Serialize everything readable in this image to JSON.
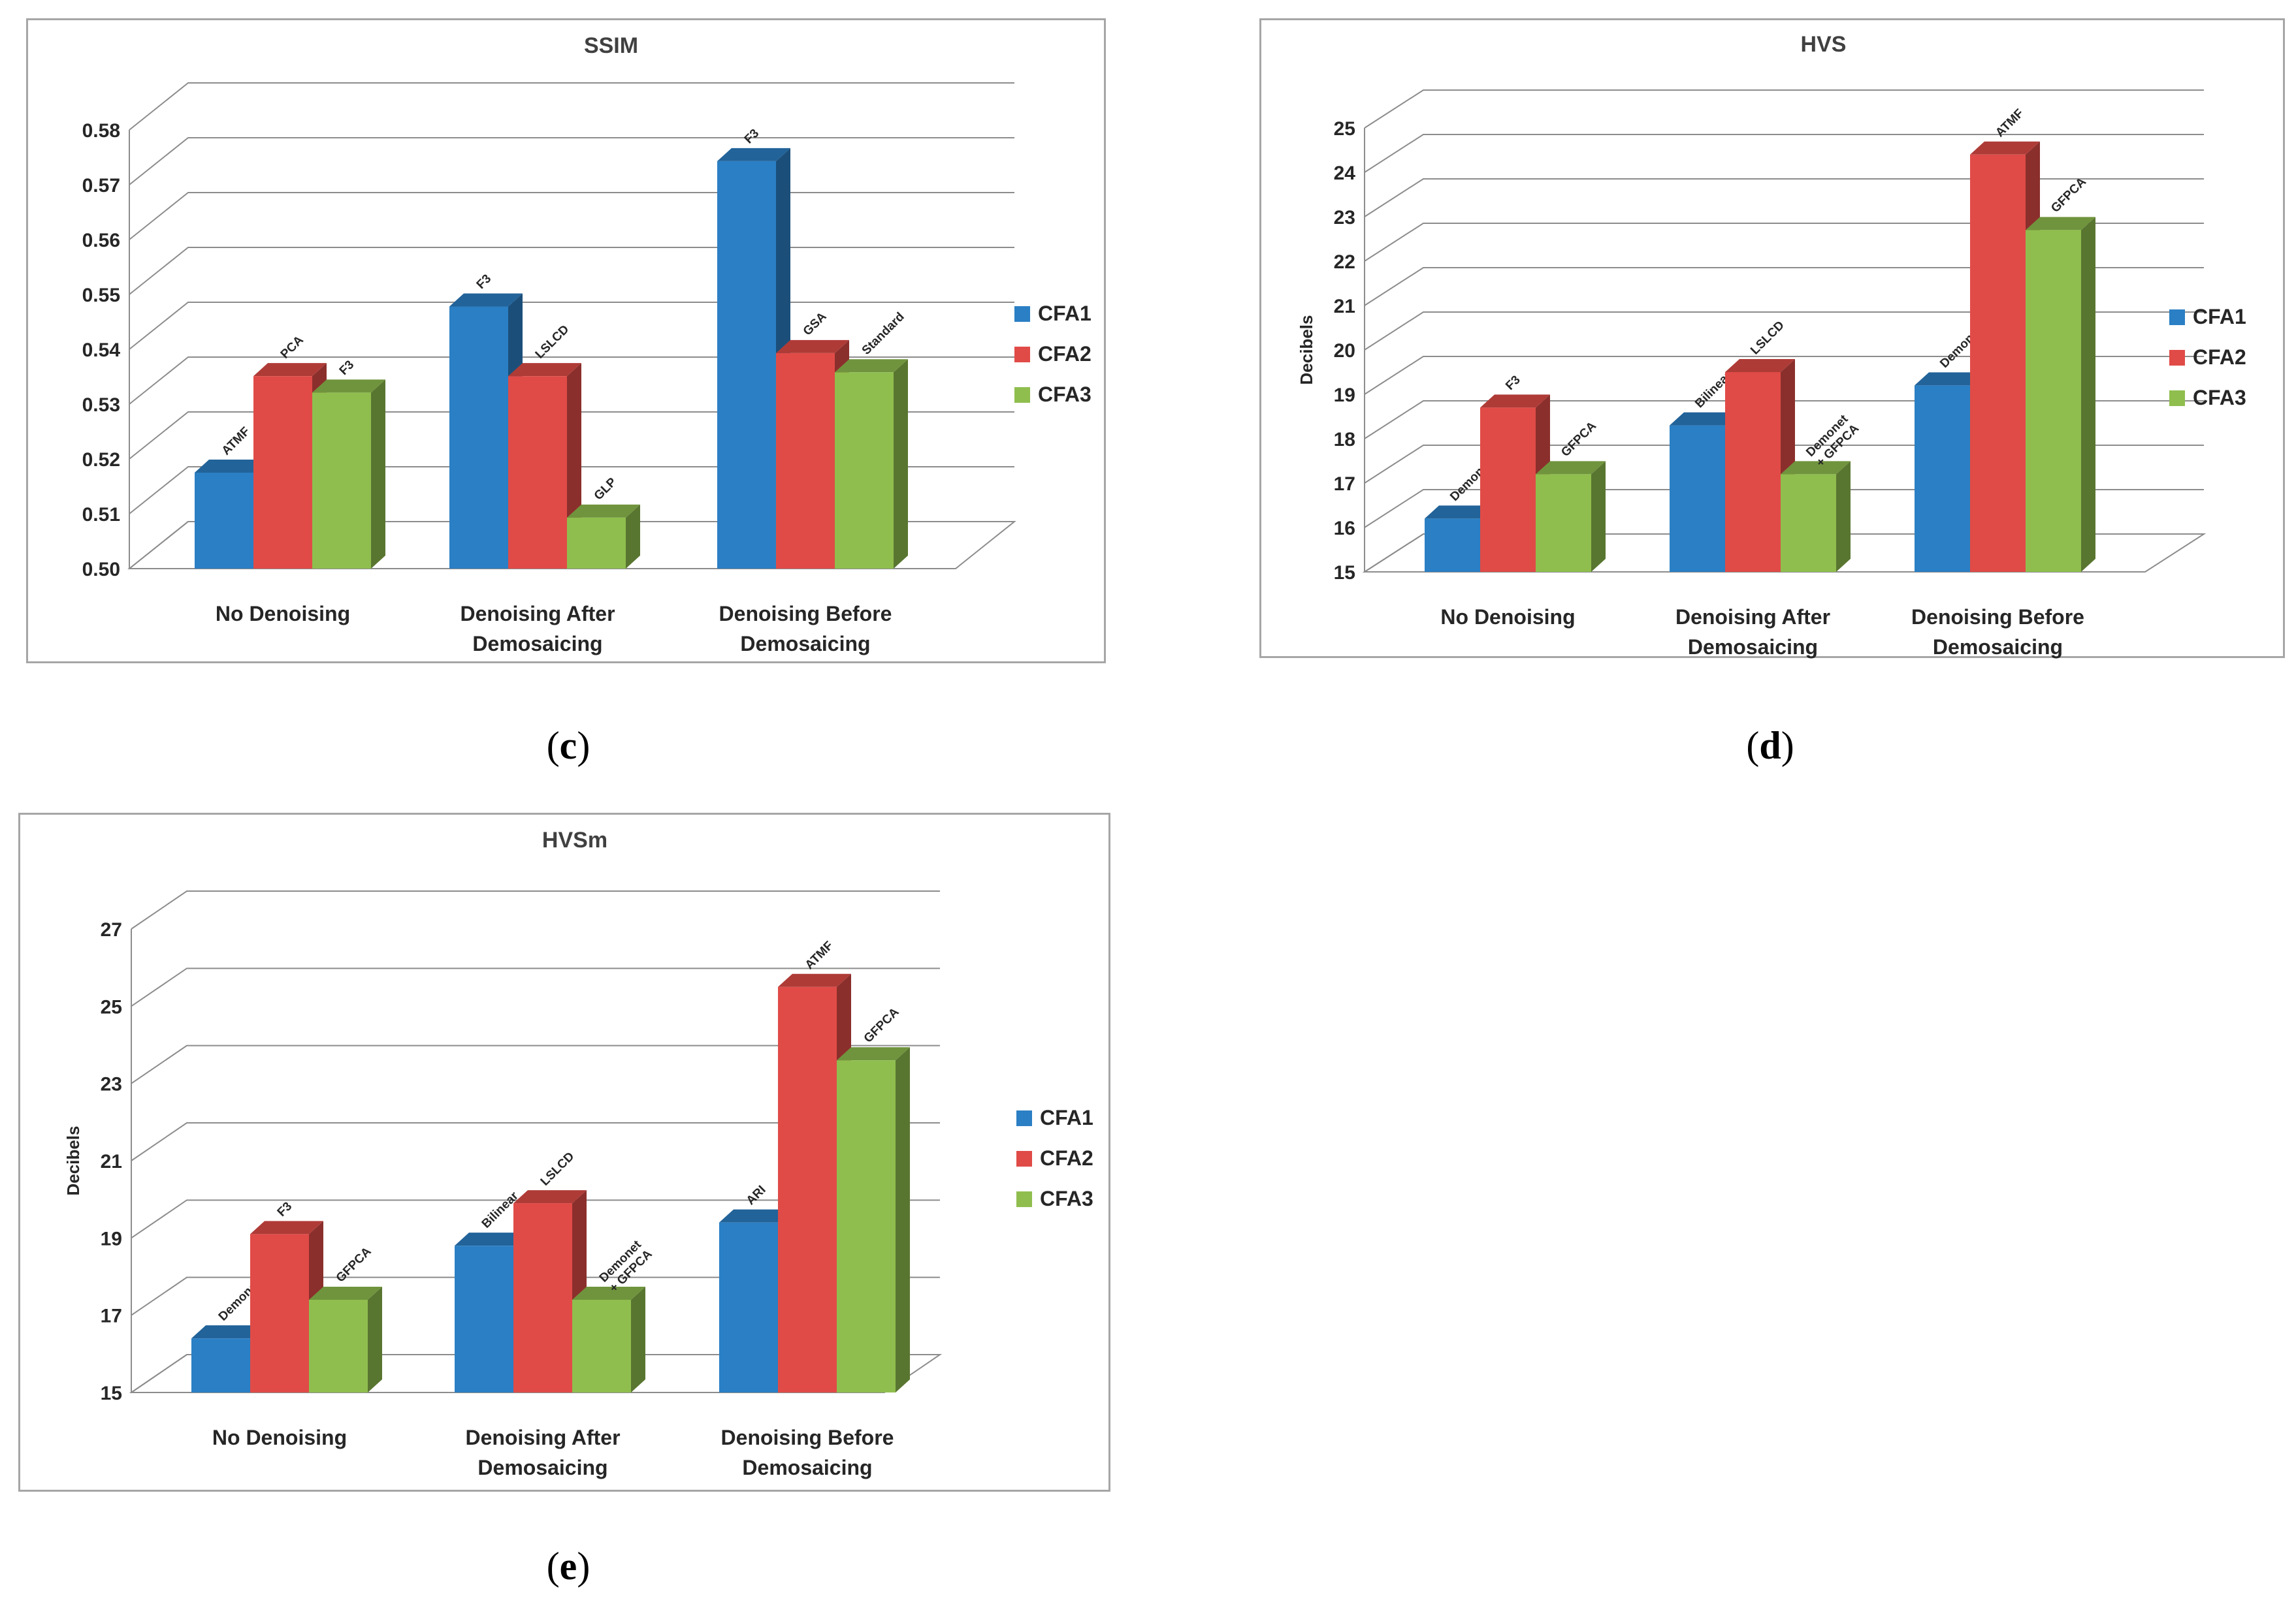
{
  "colors": {
    "CFA1": "#2b7fc4",
    "CFA2": "#e04b47",
    "CFA3": "#8fbe4e"
  },
  "captions": {
    "c": "c",
    "d": "d",
    "e": "e"
  },
  "chart_data": [
    {
      "id": "c",
      "type": "bar",
      "title": "SSIM",
      "xlabel": "",
      "ylabel": "",
      "ylim": [
        0.5,
        0.58
      ],
      "yticks": [
        "0.50",
        "0.51",
        "0.52",
        "0.53",
        "0.54",
        "0.55",
        "0.56",
        "0.57",
        "0.58"
      ],
      "categories": [
        [
          "No Denoising"
        ],
        [
          "Denoising After",
          "Demosaicing"
        ],
        [
          "Denoising Before",
          "Demosaicing"
        ]
      ],
      "legend": [
        "CFA1",
        "CFA2",
        "CFA3"
      ],
      "legend_position": "right",
      "series": [
        {
          "name": "CFA1",
          "values": [
            0.5175,
            0.5478,
            0.5743
          ],
          "labels": [
            [
              "ATMF"
            ],
            [
              "F3"
            ],
            [
              "F3"
            ]
          ]
        },
        {
          "name": "CFA2",
          "values": [
            0.5351,
            0.5351,
            0.5393
          ],
          "labels": [
            [
              "PCA"
            ],
            [
              "LSLCD"
            ],
            [
              "GSA"
            ]
          ]
        },
        {
          "name": "CFA3",
          "values": [
            0.5321,
            0.5093,
            0.5358
          ],
          "labels": [
            [
              "F3"
            ],
            [
              "GLP"
            ],
            [
              "Standard"
            ]
          ]
        }
      ]
    },
    {
      "id": "d",
      "type": "bar",
      "title": "HVS",
      "xlabel": "",
      "ylabel": "Decibels",
      "ylim": [
        15,
        25
      ],
      "yticks": [
        "15",
        "16",
        "17",
        "18",
        "19",
        "20",
        "21",
        "22",
        "23",
        "24",
        "25"
      ],
      "categories": [
        [
          "No Denoising"
        ],
        [
          "Denoising After",
          "Demosaicing"
        ],
        [
          "Denoising Before",
          "Demosaicing"
        ]
      ],
      "legend": [
        "CFA1",
        "CFA2",
        "CFA3"
      ],
      "legend_position": "right",
      "series": [
        {
          "name": "CFA1",
          "values": [
            16.2,
            18.3,
            19.2
          ],
          "labels": [
            [
              "Demonet"
            ],
            [
              "Bilinear"
            ],
            [
              "Demonet"
            ]
          ]
        },
        {
          "name": "CFA2",
          "values": [
            18.7,
            19.5,
            24.4
          ],
          "labels": [
            [
              "F3"
            ],
            [
              "LSLCD"
            ],
            [
              "ATMF"
            ]
          ]
        },
        {
          "name": "CFA3",
          "values": [
            17.2,
            17.2,
            22.7
          ],
          "labels": [
            [
              "GFPCA"
            ],
            [
              "Demonet",
              "+ GFPCA"
            ],
            [
              "GFPCA"
            ]
          ]
        }
      ]
    },
    {
      "id": "e",
      "type": "bar",
      "title": "HVSm",
      "xlabel": "",
      "ylabel": "Decibels",
      "ylim": [
        15,
        27
      ],
      "yticks": [
        "15",
        "17",
        "19",
        "21",
        "23",
        "25",
        "27"
      ],
      "categories": [
        [
          "No Denoising"
        ],
        [
          "Denoising After",
          "Demosaicing"
        ],
        [
          "Denoising Before",
          "Demosaicing"
        ]
      ],
      "legend": [
        "CFA1",
        "CFA2",
        "CFA3"
      ],
      "legend_position": "right",
      "series": [
        {
          "name": "CFA1",
          "values": [
            16.4,
            18.8,
            19.4
          ],
          "labels": [
            [
              "Demonet"
            ],
            [
              "Bilinear"
            ],
            [
              "ARI"
            ]
          ]
        },
        {
          "name": "CFA2",
          "values": [
            19.1,
            19.9,
            25.5
          ],
          "labels": [
            [
              "F3"
            ],
            [
              "LSLCD"
            ],
            [
              "ATMF"
            ]
          ]
        },
        {
          "name": "CFA3",
          "values": [
            17.4,
            17.4,
            23.6
          ],
          "labels": [
            [
              "GFPCA"
            ],
            [
              "Demonet",
              "+ GFPCA"
            ],
            [
              "GFPCA"
            ]
          ]
        }
      ]
    }
  ]
}
